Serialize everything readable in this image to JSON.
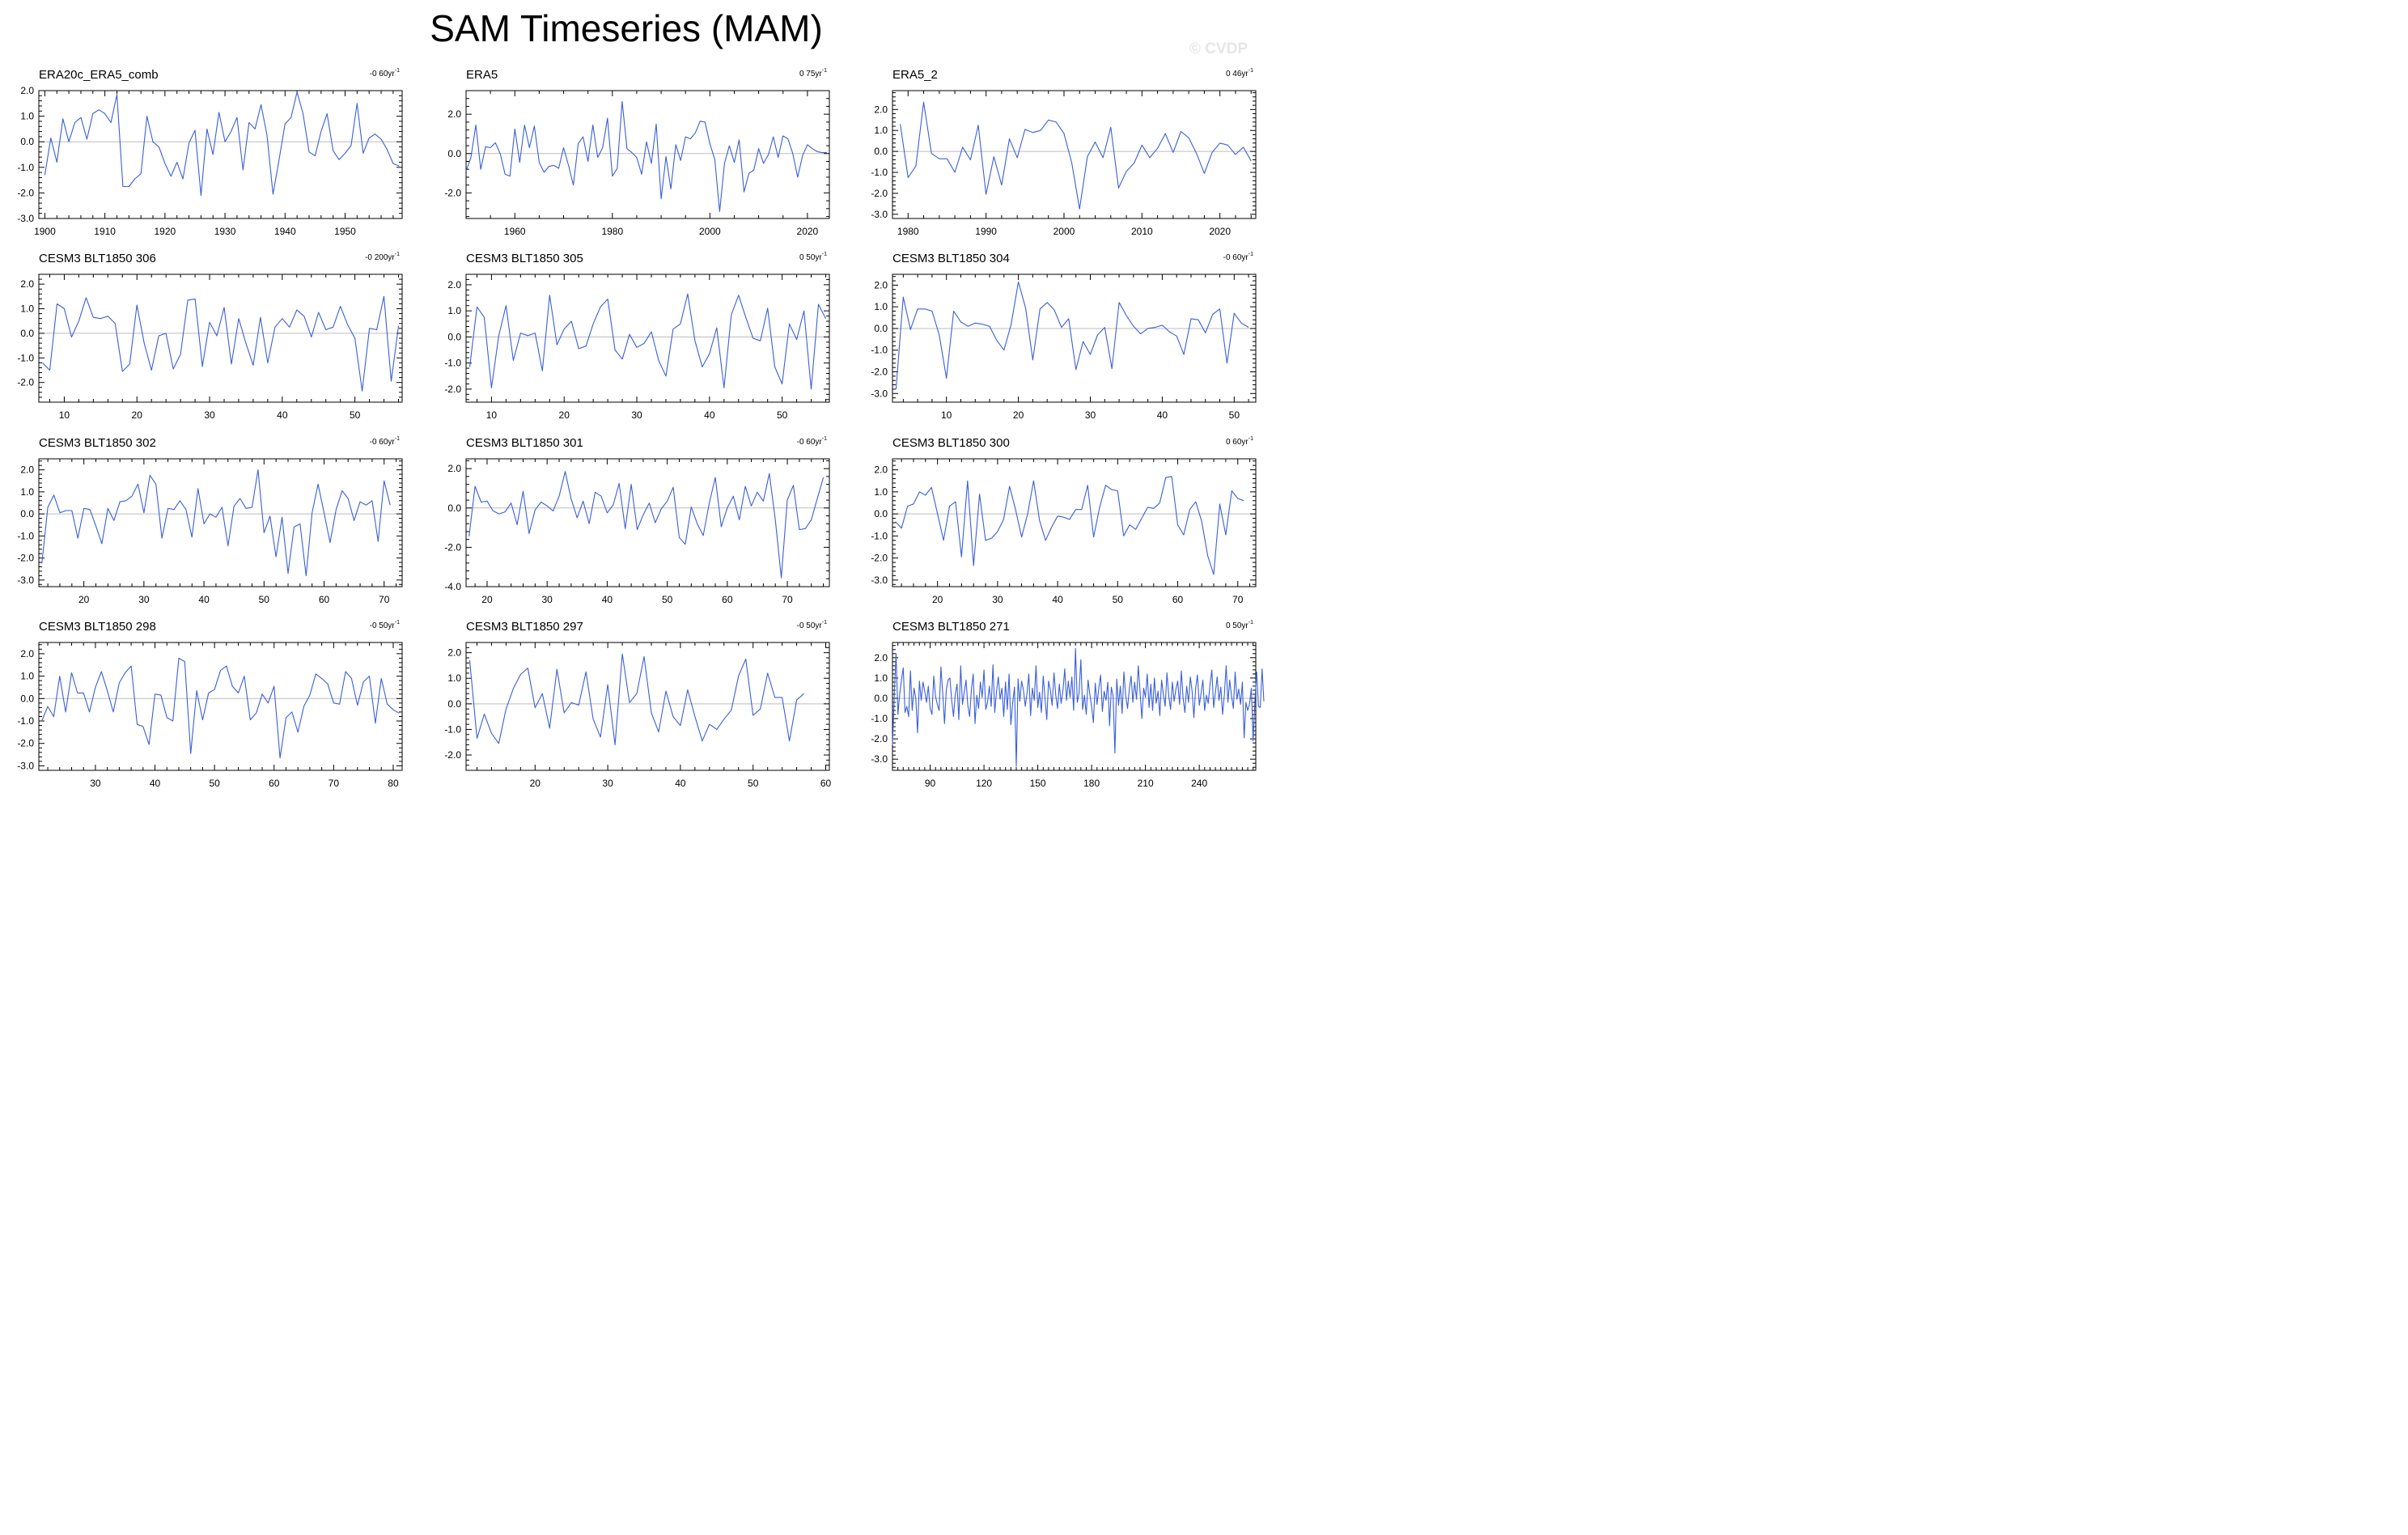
{
  "title": "SAM Timeseries (MAM)",
  "watermark": "© CVDP",
  "line_color": "#3a5fd9",
  "chart_data": [
    {
      "type": "line",
      "title": "ERA20c_ERA5_comb",
      "trend": "-0 60yr",
      "x0": 1900,
      "y": [
        -1.3,
        0.15,
        -0.8,
        0.9,
        0.0,
        0.75,
        0.95,
        0.1,
        1.1,
        1.25,
        1.1,
        0.75,
        1.85,
        -1.75,
        -1.75,
        -1.45,
        -1.25,
        1.0,
        0.0,
        -0.2,
        -0.85,
        -1.35,
        -0.8,
        -1.45,
        -0.05,
        0.45,
        -2.1,
        0.5,
        -0.5,
        1.15,
        0.0,
        0.4,
        0.95,
        -1.1,
        0.75,
        0.5,
        1.45,
        0.25,
        -2.05,
        -0.7,
        0.7,
        0.95,
        1.95,
        1.1,
        -0.4,
        -0.55,
        0.4,
        1.1,
        -0.35,
        -0.7,
        -0.45,
        -0.15,
        1.5,
        -0.45,
        0.15,
        0.3,
        0.1,
        -0.3,
        -0.85,
        -0.95
      ],
      "xlim": [
        1899,
        1959.5
      ],
      "ylim": [
        -3,
        2
      ],
      "yticks": [
        2,
        1,
        0,
        -1,
        -2,
        -3
      ],
      "ytick_labels": [
        "2.0",
        "1.0",
        "0.0",
        "-1.0",
        "-2.0",
        "-3.0"
      ],
      "xticks": [
        1900,
        1910,
        1920,
        1930,
        1940,
        1950
      ],
      "minor": 2
    },
    {
      "type": "line",
      "title": "ERA5",
      "trend": "0 75yr",
      "x0": 1950,
      "y": [
        -0.9,
        -0.2,
        1.45,
        -0.8,
        0.35,
        0.3,
        0.55,
        0.0,
        -1.05,
        -1.15,
        1.25,
        -0.45,
        1.45,
        0.3,
        1.4,
        -0.45,
        -0.95,
        -0.65,
        -0.6,
        -0.75,
        0.3,
        -0.6,
        -1.6,
        0.5,
        0.85,
        -0.4,
        1.45,
        -0.2,
        0.3,
        1.8,
        -1.15,
        -0.75,
        2.65,
        0.25,
        0.05,
        -0.2,
        -1.05,
        0.6,
        -0.5,
        1.5,
        -2.3,
        -0.15,
        -1.8,
        0.45,
        -0.35,
        0.85,
        0.75,
        1.05,
        1.65,
        1.6,
        0.5,
        -0.3,
        -2.95,
        -0.5,
        0.4,
        -0.45,
        0.7,
        -1.95,
        -1.0,
        -0.85,
        0.25,
        -0.5,
        -0.05,
        0.85,
        -0.2,
        0.9,
        0.75,
        0.0,
        -1.2,
        -0.1,
        0.45,
        0.25,
        0.1,
        0.05,
        0.05
      ],
      "xlim": [
        1950,
        2024.5
      ],
      "ylim": [
        -3.3,
        3.2
      ],
      "yticks": [
        2,
        0,
        -2
      ],
      "ytick_labels": [
        "2.0",
        "0.0",
        "-2.0"
      ],
      "xticks": [
        1960,
        1980,
        2000,
        2020
      ],
      "minor": 5
    },
    {
      "type": "line",
      "title": "ERA5_2",
      "trend": "0 46yr",
      "x0": 1979,
      "y": [
        1.3,
        -1.25,
        -0.7,
        2.35,
        -0.1,
        -0.35,
        -0.35,
        -1.0,
        0.2,
        -0.4,
        1.25,
        -2.05,
        -0.25,
        -1.6,
        0.6,
        -0.3,
        1.05,
        0.9,
        1.0,
        1.5,
        1.4,
        0.85,
        -0.55,
        -2.75,
        -0.25,
        0.45,
        -0.3,
        1.15,
        -1.75,
        -0.95,
        -0.55,
        0.3,
        -0.3,
        0.15,
        0.85,
        -0.05,
        0.95,
        0.65,
        -0.1,
        -1.05,
        -0.05,
        0.4,
        0.3,
        -0.15,
        0.2,
        -0.45
      ],
      "xlim": [
        1978,
        2024.6
      ],
      "ylim": [
        -3.2,
        2.9
      ],
      "yticks": [
        2,
        1,
        0,
        -1,
        -2,
        -3
      ],
      "ytick_labels": [
        "2.0",
        "1.0",
        "0.0",
        "-1.0",
        "-2.0",
        "-3.0"
      ],
      "xticks": [
        1980,
        1990,
        2000,
        2010,
        2020
      ],
      "minor": 2
    },
    {
      "type": "line",
      "title": "CESM3 BLT1850 306",
      "trend": "-0 200yr",
      "x0": 7,
      "y": [
        -1.2,
        -1.5,
        1.2,
        1.0,
        -0.15,
        0.5,
        1.45,
        0.65,
        0.6,
        0.7,
        0.4,
        -1.55,
        -1.25,
        1.15,
        -0.4,
        -1.5,
        -0.1,
        0.0,
        -1.45,
        -0.85,
        1.35,
        1.4,
        -1.35,
        0.45,
        -0.1,
        1.05,
        -1.25,
        0.6,
        -0.4,
        -1.3,
        0.65,
        -1.2,
        0.25,
        0.6,
        0.25,
        0.95,
        0.7,
        -0.15,
        0.85,
        0.15,
        0.25,
        1.1,
        0.35,
        -0.2,
        -2.35,
        0.2,
        0.15,
        1.5,
        -1.95,
        0.3
      ],
      "xlim": [
        6.5,
        56.5
      ],
      "ylim": [
        -2.8,
        2.4
      ],
      "yticks": [
        2,
        1,
        0,
        -1,
        -2
      ],
      "ytick_labels": [
        "2.0",
        "1.0",
        "0.0",
        "-1.0",
        "-2.0"
      ],
      "xticks": [
        10,
        20,
        30,
        40,
        50
      ],
      "minor": 2
    },
    {
      "type": "line",
      "title": "CESM3 BLT1850 305",
      "trend": "0 50yr",
      "x0": 7,
      "y": [
        -1.15,
        1.15,
        0.75,
        -1.95,
        0.05,
        1.2,
        -0.9,
        0.15,
        0.05,
        0.15,
        -1.3,
        1.6,
        -0.3,
        0.3,
        0.6,
        -0.45,
        -0.35,
        0.5,
        1.15,
        1.45,
        -0.5,
        -0.85,
        0.1,
        -0.4,
        -0.25,
        0.2,
        -0.9,
        -1.5,
        0.3,
        0.5,
        1.65,
        -0.15,
        -1.15,
        -0.65,
        0.35,
        -1.95,
        0.85,
        1.6,
        0.75,
        -0.05,
        -0.15,
        1.1,
        -1.15,
        -1.8,
        0.5,
        -0.1,
        1.0,
        -2.0,
        1.25,
        0.7
      ],
      "xlim": [
        6.5,
        56.5
      ],
      "ylim": [
        -2.5,
        2.4
      ],
      "yticks": [
        2,
        1,
        0,
        -1,
        -2
      ],
      "ytick_labels": [
        "2.0",
        "1.0",
        "0.0",
        "-1.0",
        "-2.0"
      ],
      "xticks": [
        10,
        20,
        30,
        40,
        50
      ],
      "minor": 2
    },
    {
      "type": "line",
      "title": "CESM3 BLT1850 304",
      "trend": "-0 60yr",
      "x0": 3,
      "y": [
        -2.8,
        1.45,
        -0.05,
        0.9,
        0.9,
        0.8,
        -0.3,
        -2.3,
        0.8,
        0.3,
        0.1,
        0.25,
        0.2,
        0.1,
        -0.55,
        -1.0,
        0.2,
        2.15,
        0.95,
        -1.45,
        0.9,
        1.2,
        0.85,
        0.05,
        0.45,
        -1.9,
        -0.6,
        -1.2,
        -0.3,
        0.05,
        -1.85,
        1.2,
        0.6,
        0.1,
        -0.25,
        0.0,
        0.05,
        0.15,
        -0.15,
        -0.35,
        -1.2,
        0.45,
        0.4,
        -0.2,
        0.65,
        0.9,
        -1.6,
        0.7,
        0.25,
        0.05
      ],
      "xlim": [
        2.5,
        53
      ],
      "ylim": [
        -3.4,
        2.5
      ],
      "yticks": [
        2,
        1,
        0,
        -1,
        -2,
        -3
      ],
      "ytick_labels": [
        "2.0",
        "1.0",
        "0.0",
        "-1.0",
        "-2.0",
        "-3.0"
      ],
      "xticks": [
        10,
        20,
        30,
        40,
        50
      ],
      "minor": 2
    },
    {
      "type": "line",
      "title": "CESM3 BLT1850 302",
      "trend": "-0 60yr",
      "x0": 13,
      "y": [
        -2.25,
        0.3,
        0.85,
        0.05,
        0.15,
        0.15,
        -1.1,
        0.25,
        0.2,
        -0.55,
        -1.35,
        0.25,
        -0.3,
        0.55,
        0.6,
        0.8,
        1.35,
        0.05,
        1.75,
        1.35,
        -1.1,
        0.25,
        0.2,
        0.6,
        0.2,
        -1.05,
        1.15,
        -0.45,
        0.0,
        -0.15,
        0.3,
        -1.45,
        0.35,
        0.7,
        0.25,
        0.3,
        2.0,
        -0.85,
        -0.1,
        -1.95,
        -0.15,
        -2.7,
        -0.6,
        -0.45,
        -2.8,
        0.05,
        1.35,
        0.05,
        -1.3,
        0.2,
        1.05,
        0.7,
        -0.3,
        0.55,
        0.4,
        0.6,
        -1.25,
        1.5,
        0.4
      ],
      "xlim": [
        12.5,
        73
      ],
      "ylim": [
        -3.3,
        2.5
      ],
      "yticks": [
        2,
        1,
        0,
        -1,
        -2,
        -3
      ],
      "ytick_labels": [
        "2.0",
        "1.0",
        "0.0",
        "-1.0",
        "-2.0",
        "-3.0"
      ],
      "xticks": [
        20,
        30,
        40,
        50,
        60,
        70
      ],
      "minor": 2
    },
    {
      "type": "line",
      "title": "CESM3 BLT1850 301",
      "trend": "-0 60yr",
      "x0": 17,
      "y": [
        -1.45,
        1.1,
        0.3,
        0.35,
        -0.15,
        -0.3,
        -0.2,
        0.25,
        -0.85,
        0.85,
        -1.3,
        -0.1,
        0.3,
        0.1,
        -0.15,
        0.6,
        1.85,
        0.45,
        -0.5,
        0.35,
        -0.8,
        0.8,
        0.6,
        -0.25,
        0.15,
        1.25,
        -1.05,
        1.2,
        -1.1,
        -0.35,
        0.25,
        -0.75,
        -0.05,
        0.35,
        1.05,
        -1.5,
        -1.85,
        0.05,
        -0.8,
        -1.4,
        0.25,
        1.55,
        -0.95,
        0.0,
        0.6,
        -0.6,
        1.1,
        0.1,
        0.8,
        0.35,
        1.75,
        -0.6,
        -3.55,
        0.4,
        1.15,
        -1.1,
        -1.05,
        -0.6,
        0.5,
        1.55
      ],
      "xlim": [
        16.5,
        77
      ],
      "ylim": [
        -4,
        2.5
      ],
      "yticks": [
        2,
        0,
        -2,
        -4
      ],
      "ytick_labels": [
        "2.0",
        "0.0",
        "-2.0",
        "-4.0"
      ],
      "xticks": [
        20,
        30,
        40,
        50,
        60,
        70
      ],
      "minor": 2
    },
    {
      "type": "line",
      "title": "CESM3 BLT1850 300",
      "trend": "0 60yr",
      "x0": 13,
      "y": [
        -0.35,
        -0.65,
        0.35,
        0.45,
        1.0,
        0.85,
        1.2,
        0.0,
        -1.2,
        0.35,
        0.55,
        -1.95,
        1.5,
        -2.35,
        0.9,
        -1.2,
        -1.1,
        -0.8,
        -0.25,
        1.25,
        0.2,
        -1.05,
        0.0,
        1.5,
        -0.3,
        -1.2,
        -0.6,
        -0.1,
        -0.15,
        -0.25,
        0.2,
        0.2,
        1.3,
        -1.05,
        0.3,
        1.3,
        1.1,
        1.05,
        -1.0,
        -0.5,
        -0.7,
        -0.2,
        0.3,
        0.25,
        0.5,
        1.65,
        1.7,
        -0.5,
        -0.95,
        0.2,
        0.55,
        -0.35,
        -1.9,
        -2.75,
        0.45,
        -0.95,
        1.05,
        0.7,
        0.6
      ],
      "xlim": [
        12.5,
        73
      ],
      "ylim": [
        -3.3,
        2.5
      ],
      "yticks": [
        2,
        1,
        0,
        -1,
        -2,
        -3
      ],
      "ytick_labels": [
        "2.0",
        "1.0",
        "0.0",
        "-1.0",
        "-2.0",
        "-3.0"
      ],
      "xticks": [
        20,
        30,
        40,
        50,
        60,
        70
      ],
      "minor": 2
    },
    {
      "type": "line",
      "title": "CESM3 BLT1850 298",
      "trend": "-0 50yr",
      "x0": 21,
      "y": [
        -1.0,
        -0.35,
        -0.8,
        1.0,
        -0.6,
        1.15,
        0.25,
        0.25,
        -0.6,
        0.5,
        1.2,
        0.35,
        -0.6,
        0.7,
        1.15,
        1.45,
        -1.15,
        -1.25,
        -2.05,
        0.2,
        0.15,
        -0.85,
        -1.0,
        1.8,
        1.65,
        -2.45,
        0.35,
        -0.95,
        0.25,
        0.4,
        1.25,
        1.45,
        0.55,
        0.25,
        1.0,
        -0.95,
        -0.65,
        0.2,
        -0.2,
        0.55,
        -2.65,
        -0.85,
        -0.6,
        -1.5,
        -0.35,
        0.15,
        1.1,
        0.9,
        0.65,
        -0.2,
        -0.25,
        1.2,
        0.9,
        -0.3,
        0.75,
        1.0,
        -1.1,
        0.9,
        -0.25,
        -0.5,
        -0.65
      ],
      "xlim": [
        20.5,
        81.5
      ],
      "ylim": [
        -3.2,
        2.5
      ],
      "yticks": [
        2,
        1,
        0,
        -1,
        -2,
        -3
      ],
      "ytick_labels": [
        "2.0",
        "1.0",
        "0.0",
        "-1.0",
        "-2.0",
        "-3.0"
      ],
      "xticks": [
        30,
        40,
        50,
        60,
        70,
        80
      ],
      "minor": 2
    },
    {
      "type": "line",
      "title": "CESM3 BLT1850 297",
      "trend": "-0 50yr",
      "x0": 11,
      "y": [
        1.7,
        -1.35,
        -0.4,
        -1.15,
        -1.55,
        -0.2,
        0.6,
        1.15,
        1.4,
        -0.15,
        0.4,
        -0.95,
        1.35,
        -0.35,
        0.05,
        -0.05,
        1.25,
        -0.6,
        -1.3,
        0.75,
        -1.6,
        1.95,
        0.05,
        0.4,
        1.85,
        -0.35,
        -1.1,
        0.5,
        -0.5,
        -0.85,
        0.55,
        -0.5,
        -1.45,
        -0.8,
        -1.0,
        -0.6,
        -0.25,
        1.1,
        1.75,
        -0.45,
        -0.2,
        1.2,
        0.25,
        0.25,
        -1.45,
        0.15,
        0.4
      ],
      "xlim": [
        10.5,
        60.5
      ],
      "ylim": [
        -2.6,
        2.4
      ],
      "yticks": [
        2,
        1,
        0,
        -1,
        -2
      ],
      "ytick_labels": [
        "2.0",
        "1.0",
        "0.0",
        "-1.0",
        "-2.0"
      ],
      "xticks": [
        20,
        30,
        40,
        50,
        60
      ],
      "minor": 2
    },
    {
      "type": "line",
      "title": "CESM3 BLT1850 271",
      "trend": "0 50yr",
      "x0": 69,
      "y": [
        -2.3,
        0.1,
        2.2,
        -0.8,
        0.2,
        0.9,
        1.5,
        -0.7,
        -0.4,
        -0.9,
        1.35,
        -0.6,
        0.5,
        0.0,
        -1.7,
        0.85,
        -0.1,
        0.8,
        0.35,
        -0.2,
        0.6,
        -0.5,
        -0.8,
        1.1,
        0.1,
        -0.3,
        -0.6,
        1.55,
        0.25,
        -1.25,
        0.4,
        0.9,
        1.0,
        -0.1,
        -0.9,
        0.2,
        0.7,
        -1.05,
        1.6,
        -0.3,
        0.3,
        0.9,
        -0.35,
        -0.9,
        0.45,
        1.2,
        -1.25,
        0.15,
        -0.5,
        0.8,
        0.05,
        1.4,
        -0.55,
        -0.2,
        0.6,
        -0.4,
        1.65,
        -0.7,
        0.35,
        1.05,
        -0.05,
        0.5,
        -0.9,
        0.8,
        -0.55,
        1.2,
        -1.3,
        -0.2,
        0.55,
        -3.35,
        0.95,
        -0.15,
        0.85,
        0.4,
        -0.4,
        0.25,
        1.2,
        -0.85,
        0.5,
        -0.1,
        1.6,
        -0.45,
        0.3,
        -0.7,
        1.1,
        0.0,
        -1.05,
        0.85,
        0.4,
        -0.35,
        1.25,
        0.15,
        -0.5,
        0.7,
        -0.25,
        0.35,
        1.45,
        -0.1,
        0.85,
        0.05,
        1.05,
        -0.6,
        2.45,
        -0.2,
        0.25,
        1.9,
        -0.55,
        0.15,
        -0.8,
        0.9,
        0.2,
        -0.4,
        -1.2,
        0.75,
        -0.3,
        0.5,
        1.15,
        -0.65,
        0.35,
        -0.1,
        0.8,
        -1.35,
        0.55,
        0.1,
        -2.7,
        0.95,
        -0.35,
        0.6,
        -0.75,
        1.3,
        0.15,
        -0.5,
        0.45,
        1.1,
        -0.2,
        0.8,
        -0.05,
        1.6,
        0.3,
        -1.0,
        0.5,
        0.05,
        1.2,
        -0.45,
        0.7,
        -0.6,
        1.0,
        -0.25,
        0.35,
        -0.85,
        0.9,
        0.2,
        -0.4,
        1.25,
        0.1,
        -0.55,
        0.8,
        -0.15,
        0.45,
        0.85,
        -0.3,
        1.35,
        0.0,
        -0.7,
        0.6,
        -0.2,
        1.05,
        0.35,
        -0.95,
        0.5,
        1.15,
        -0.35,
        0.25,
        0.9,
        -0.6,
        0.15,
        -0.25,
        0.7,
        1.4,
        -0.45,
        0.3,
        1.05,
        -0.1,
        0.55,
        -0.8,
        0.2,
        1.6,
        -0.2,
        0.9,
        0.1,
        -0.5,
        1.3,
        -0.05,
        0.45,
        -0.3,
        0.8,
        -1.95,
        -0.2,
        -0.6,
        -0.3,
        0.5,
        -2.1,
        -0.15,
        1.3,
        -0.4,
        -0.45,
        1.45,
        -0.15
      ],
      "xlim": [
        69,
        271.5
      ],
      "ylim": [
        -3.55,
        2.75
      ],
      "yticks": [
        2,
        1,
        0,
        -1,
        -2,
        -3
      ],
      "ytick_labels": [
        "2.0",
        "1.0",
        "0.0",
        "-1.0",
        "-2.0",
        "-3.0"
      ],
      "xticks": [
        90,
        120,
        150,
        180,
        210,
        240
      ],
      "minor": 3
    }
  ]
}
